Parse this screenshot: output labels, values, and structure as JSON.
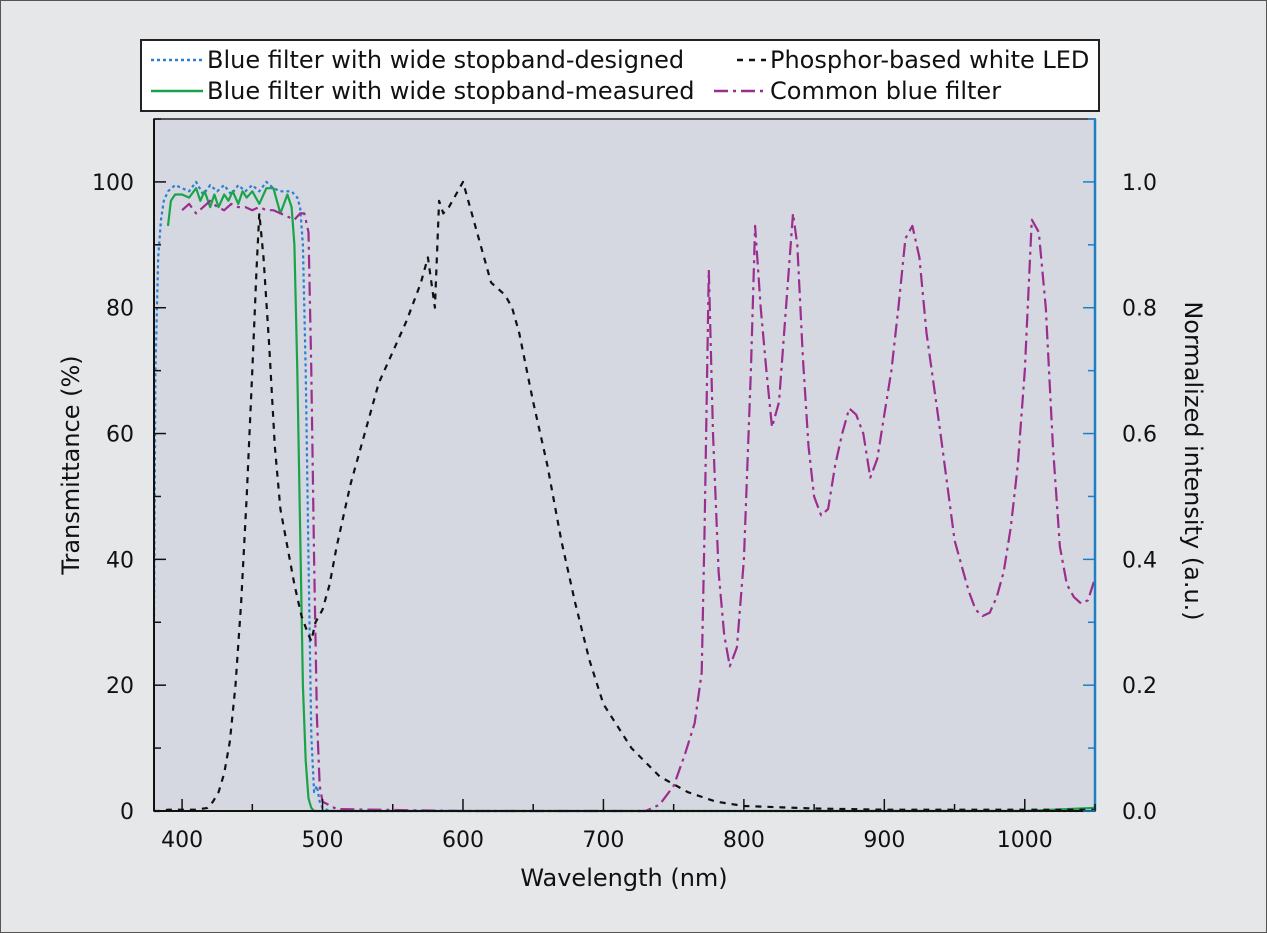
{
  "chart_data": {
    "type": "line",
    "xlabel": "Wavelength (nm)",
    "ylabel": "Transmittance (%)",
    "y2label": "Normalized intensity (a.u.)",
    "xlim": [
      380,
      1050
    ],
    "ylim": [
      0,
      110
    ],
    "y2lim": [
      0,
      1.1
    ],
    "xticks": [
      400,
      500,
      600,
      700,
      800,
      900,
      1000
    ],
    "yticks": [
      0,
      20,
      40,
      60,
      80,
      100
    ],
    "y2ticks": [
      "0.0",
      "0.2",
      "0.4",
      "0.6",
      "0.8",
      "1.0"
    ],
    "grid": false,
    "legend_position": "top",
    "colors": {
      "plot_background": "#d5d8e1",
      "figure_background": "#e6e7e8",
      "right_axis": "#1f7fc4"
    },
    "series": [
      {
        "name": "Blue filter with wide stopband-designed",
        "axis": "left",
        "color": "#2a7fd4",
        "style": "dotted",
        "x": [
          380,
          381,
          383,
          385,
          387,
          390,
          395,
          400,
          405,
          410,
          415,
          420,
          425,
          430,
          435,
          440,
          445,
          450,
          455,
          460,
          465,
          470,
          475,
          478,
          480,
          482,
          484,
          486,
          488,
          490,
          492,
          494,
          496,
          498,
          500,
          505,
          520,
          600,
          700,
          800,
          900,
          1000,
          1050
        ],
        "y": [
          30,
          70,
          88,
          94,
          97,
          98.5,
          99.5,
          99,
          98.5,
          100,
          98,
          99.5,
          98.5,
          99.5,
          98,
          99.5,
          98.5,
          99.5,
          98.5,
          100,
          99,
          98.5,
          98.5,
          98.5,
          98,
          97.5,
          96,
          90,
          70,
          40,
          12,
          3,
          4,
          1.5,
          0.5,
          0,
          0,
          0,
          0,
          0,
          0,
          0,
          0
        ]
      },
      {
        "name": "Blue filter with wide stopband-measured",
        "axis": "left",
        "color": "#19a44a",
        "style": "solid",
        "x": [
          390,
          392,
          395,
          400,
          405,
          410,
          413,
          416,
          420,
          423,
          426,
          430,
          433,
          436,
          440,
          443,
          446,
          450,
          455,
          460,
          465,
          470,
          475,
          478,
          480,
          482,
          484,
          486,
          488,
          490,
          492,
          494,
          496,
          500,
          520,
          600,
          700,
          775,
          780,
          790,
          800,
          815,
          825,
          835,
          845,
          855,
          865,
          880,
          900,
          950,
          1000,
          1050
        ],
        "y": [
          93,
          97,
          98,
          98,
          97.5,
          99,
          97,
          98.5,
          96,
          98,
          96,
          98,
          97,
          98.5,
          96.5,
          98.5,
          97.5,
          98.5,
          96.5,
          99,
          99,
          95,
          98,
          96,
          90,
          70,
          45,
          20,
          8,
          2,
          0.5,
          0,
          0,
          0,
          0,
          0,
          0,
          0,
          0,
          0,
          0,
          0,
          0,
          0,
          0,
          0,
          0,
          0,
          0,
          0,
          0,
          0.5
        ]
      },
      {
        "name": "Phosphor-based white LED",
        "axis": "right",
        "color": "#111111",
        "style": "dashed",
        "x": [
          380,
          385,
          390,
          400,
          410,
          418,
          422,
          426,
          430,
          434,
          438,
          442,
          446,
          450,
          453,
          455,
          458,
          462,
          466,
          470,
          475,
          480,
          485,
          490,
          492,
          495,
          500,
          505,
          510,
          520,
          530,
          540,
          550,
          560,
          570,
          575,
          580,
          583,
          586,
          590,
          595,
          600,
          610,
          620,
          630,
          635,
          640,
          650,
          660,
          670,
          680,
          690,
          700,
          720,
          740,
          760,
          780,
          800,
          850,
          900,
          950,
          1000,
          1050
        ],
        "y": [
          0,
          0,
          0.002,
          0.002,
          0.002,
          0.005,
          0.015,
          0.03,
          0.06,
          0.11,
          0.2,
          0.33,
          0.5,
          0.7,
          0.86,
          0.95,
          0.88,
          0.74,
          0.58,
          0.48,
          0.42,
          0.36,
          0.31,
          0.28,
          0.27,
          0.3,
          0.32,
          0.36,
          0.42,
          0.52,
          0.6,
          0.68,
          0.73,
          0.78,
          0.84,
          0.88,
          0.8,
          0.97,
          0.95,
          0.96,
          0.98,
          1.0,
          0.92,
          0.84,
          0.82,
          0.8,
          0.76,
          0.65,
          0.55,
          0.43,
          0.33,
          0.24,
          0.17,
          0.1,
          0.055,
          0.03,
          0.015,
          0.008,
          0.004,
          0.002,
          0.002,
          0.002,
          0.002
        ]
      },
      {
        "name": "Common blue filter",
        "axis": "left",
        "color": "#9b2d8e",
        "style": "dashdot",
        "x": [
          400,
          405,
          410,
          415,
          420,
          425,
          430,
          435,
          440,
          445,
          450,
          455,
          460,
          465,
          470,
          475,
          480,
          484,
          487,
          490,
          492,
          494,
          496,
          498,
          500,
          510,
          600,
          700,
          730,
          740,
          750,
          758,
          765,
          770,
          772,
          775,
          778,
          782,
          786,
          790,
          795,
          800,
          805,
          808,
          812,
          816,
          820,
          825,
          830,
          835,
          838,
          842,
          846,
          850,
          855,
          860,
          865,
          870,
          875,
          880,
          885,
          890,
          895,
          900,
          905,
          910,
          915,
          920,
          925,
          930,
          940,
          950,
          960,
          965,
          970,
          975,
          980,
          985,
          990,
          995,
          1000,
          1005,
          1010,
          1015,
          1020,
          1025,
          1030,
          1035,
          1040,
          1045,
          1050
        ],
        "y": [
          95.5,
          96.5,
          95,
          96,
          97,
          96,
          95.5,
          96.5,
          96,
          96,
          95.5,
          96,
          95.5,
          95.5,
          95,
          94.5,
          94,
          95,
          95,
          92,
          70,
          40,
          15,
          4,
          1.5,
          0.3,
          0,
          0,
          0,
          1,
          4,
          9,
          14,
          22,
          45,
          86,
          60,
          38,
          28,
          23,
          26,
          40,
          70,
          93,
          80,
          70,
          61,
          65,
          80,
          95,
          90,
          72,
          58,
          50,
          47,
          48,
          55,
          60,
          64,
          63,
          60,
          53,
          56,
          63,
          70,
          80,
          91,
          93,
          88,
          76,
          60,
          43,
          35,
          32,
          31,
          31.5,
          34,
          38,
          45,
          55,
          70,
          94,
          92,
          80,
          58,
          42,
          36,
          34,
          33,
          33.5,
          37
        ]
      }
    ]
  }
}
